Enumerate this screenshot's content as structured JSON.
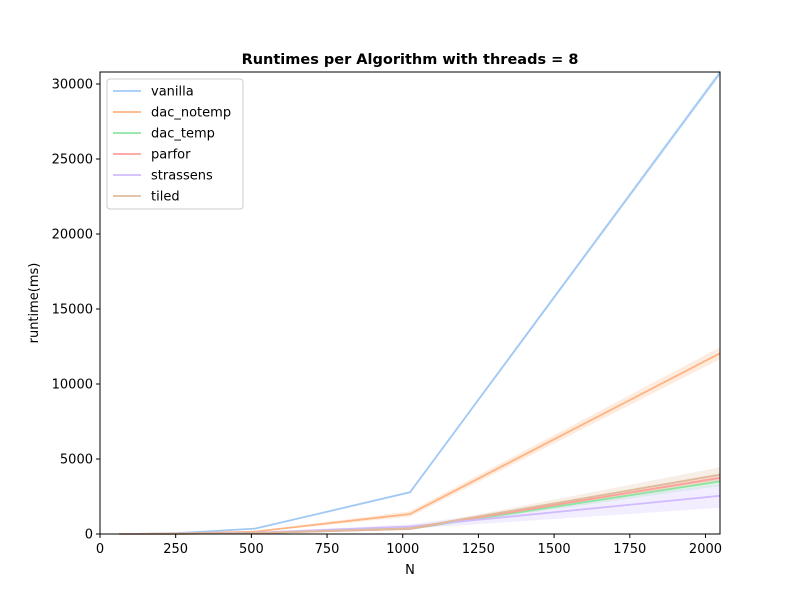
{
  "chart_data": {
    "type": "line",
    "title": "Runtimes per Algorithm with threads = 8",
    "xlabel": "N",
    "ylabel": "runtime(ms)",
    "xlim": [
      0,
      2048
    ],
    "ylim": [
      0,
      30800
    ],
    "xticks": [
      0,
      250,
      500,
      750,
      1000,
      1250,
      1500,
      1750,
      2000
    ],
    "yticks": [
      0,
      5000,
      10000,
      15000,
      20000,
      25000,
      30000
    ],
    "grid": false,
    "legend_position": "top-left",
    "x": [
      64,
      128,
      256,
      512,
      1024,
      2048
    ],
    "series": [
      {
        "name": "vanilla",
        "color": "#a1c9f4",
        "values": [
          2,
          10,
          60,
          360,
          2780,
          30750
        ],
        "ci_low": [
          2,
          10,
          58,
          345,
          2700,
          30550
        ],
        "ci_high": [
          2,
          10,
          62,
          375,
          2860,
          30950
        ]
      },
      {
        "name": "dac_notemp",
        "color": "#ffb482",
        "values": [
          1,
          5,
          30,
          160,
          1330,
          12050
        ],
        "ci_low": [
          1,
          5,
          28,
          140,
          1150,
          11650
        ],
        "ci_high": [
          1,
          5,
          32,
          180,
          1520,
          12450
        ]
      },
      {
        "name": "dac_temp",
        "color": "#8de5a1",
        "values": [
          1,
          3,
          10,
          60,
          330,
          3500
        ],
        "ci_low": [
          1,
          3,
          9,
          55,
          300,
          3200
        ],
        "ci_high": [
          1,
          3,
          11,
          65,
          360,
          3800
        ]
      },
      {
        "name": "parfor",
        "color": "#ff9f9b",
        "values": [
          1,
          3,
          10,
          60,
          350,
          3750
        ],
        "ci_low": [
          1,
          3,
          9,
          55,
          320,
          3450
        ],
        "ci_high": [
          1,
          3,
          11,
          65,
          380,
          4050
        ]
      },
      {
        "name": "strassens",
        "color": "#d0bbff",
        "values": [
          1,
          4,
          20,
          90,
          500,
          2550
        ],
        "ci_low": [
          1,
          3,
          15,
          70,
          350,
          1750
        ],
        "ci_high": [
          1,
          5,
          25,
          110,
          650,
          3350
        ]
      },
      {
        "name": "tiled",
        "color": "#debb9b",
        "values": [
          1,
          3,
          12,
          65,
          380,
          3950
        ],
        "ci_low": [
          1,
          3,
          10,
          58,
          340,
          3450
        ],
        "ci_high": [
          1,
          3,
          14,
          72,
          420,
          4450
        ]
      }
    ]
  }
}
